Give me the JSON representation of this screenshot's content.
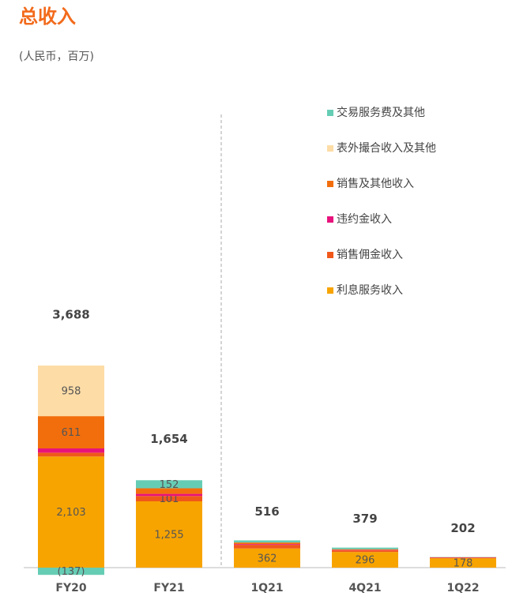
{
  "chart_data": {
    "type": "stacked_bar",
    "title": "总收入",
    "subtitle": "(人民币，百万)",
    "categories": [
      "FY20",
      "FY21",
      "1Q21",
      "4Q21",
      "1Q22"
    ],
    "series": [
      {
        "name": "利息服务收入",
        "color": "#f7a400",
        "values": [
          2103,
          1255,
          362,
          296,
          178
        ],
        "value_labels": [
          "2,103",
          "1,255",
          "362",
          "296",
          "178"
        ]
      },
      {
        "name": "销售佣金收入",
        "color": "#f0581a",
        "values": [
          73,
          101,
          70,
          30,
          10
        ],
        "value_labels": [
          null,
          "101",
          null,
          null,
          null
        ]
      },
      {
        "name": "违约金收入",
        "color": "#e8127c",
        "values": [
          80,
          40,
          14,
          8,
          6
        ],
        "value_labels": [
          null,
          null,
          null,
          null,
          null
        ]
      },
      {
        "name": "销售及其他收入",
        "color": "#f26e0c",
        "values": [
          611,
          106,
          30,
          15,
          4
        ],
        "value_labels": [
          "611",
          null,
          null,
          null,
          null
        ]
      },
      {
        "name": "表外撮合收入及其他",
        "color": "#fddca6",
        "values": [
          958,
          0,
          0,
          0,
          0
        ],
        "value_labels": [
          "958",
          null,
          null,
          null,
          null
        ]
      },
      {
        "name": "交易服务费及其他",
        "color": "#66cdb5",
        "values": [
          -137,
          152,
          40,
          30,
          4
        ],
        "value_labels": [
          "(137)",
          "152",
          null,
          null,
          null
        ]
      }
    ],
    "totals": [
      3688,
      1654,
      516,
      379,
      202
    ],
    "total_labels": [
      "3,688",
      "1,654",
      "516",
      "379",
      "202"
    ]
  }
}
